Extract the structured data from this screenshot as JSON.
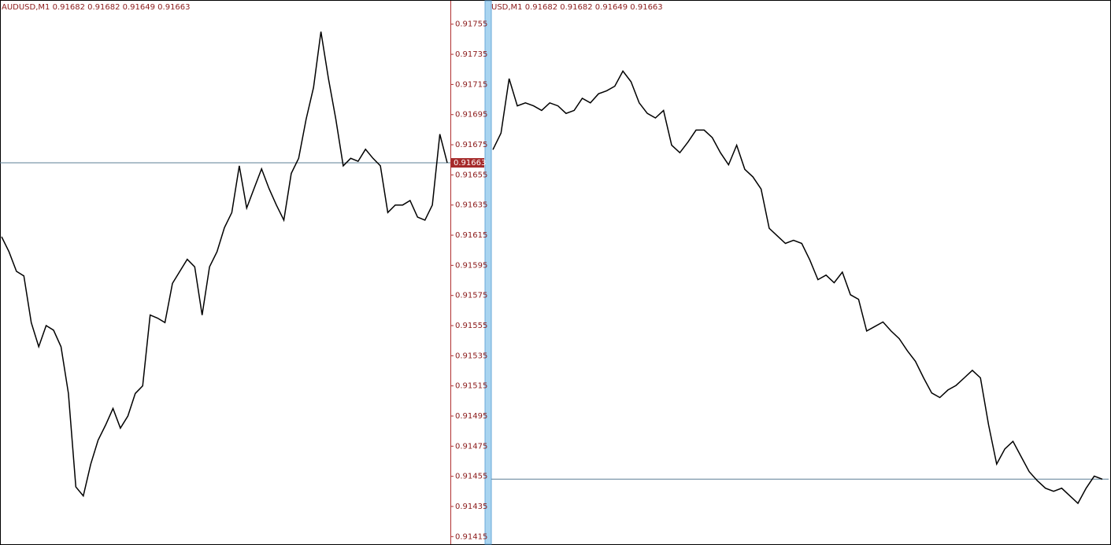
{
  "chart_data": [
    {
      "type": "line",
      "title": "AUDUSD,M1  0.91682 0.91682 0.91649 0.91663",
      "series": [
        {
          "color": "#000000",
          "values": [
            0.91614,
            0.91604,
            0.91591,
            0.91588,
            0.91557,
            0.91541,
            0.91555,
            0.91552,
            0.91541,
            0.9151,
            0.91448,
            0.91442,
            0.91463,
            0.91479,
            0.91489,
            0.915,
            0.91487,
            0.91495,
            0.9151,
            0.91515,
            0.91562,
            0.9156,
            0.91557,
            0.91583,
            0.91591,
            0.91599,
            0.91594,
            0.91562,
            0.91594,
            0.91604,
            0.9162,
            0.9163,
            0.91661,
            0.91633,
            0.91646,
            0.91659,
            0.91646,
            0.91635,
            0.91625,
            0.91656,
            0.91666,
            0.91692,
            0.91713,
            0.9175,
            0.91719,
            0.91692,
            0.91661,
            0.91666,
            0.91664,
            0.91672,
            0.91666,
            0.91661,
            0.9163,
            0.91635,
            0.91635,
            0.91638,
            0.91627,
            0.91625,
            0.91635,
            0.91682,
            0.91663
          ]
        }
      ],
      "ylim": [
        0.91411,
        0.9177
      ],
      "yticks": [
        0.91755,
        0.91735,
        0.91715,
        0.91695,
        0.91675,
        0.91655,
        0.91635,
        0.91615,
        0.91595,
        0.91575,
        0.91555,
        0.91535,
        0.91515,
        0.91495,
        0.91475,
        0.91455,
        0.91435,
        0.91415
      ],
      "last_price": 0.91663
    },
    {
      "type": "line",
      "title": "USD,M1  0.91682 0.91682 0.91649 0.91663",
      "series": [
        {
          "color": "#000000",
          "values": [
            0.91881,
            0.91892,
            0.91928,
            0.9191,
            0.91912,
            0.9191,
            0.91907,
            0.91912,
            0.9191,
            0.91905,
            0.91907,
            0.91915,
            0.91912,
            0.91918,
            0.9192,
            0.91923,
            0.91933,
            0.91926,
            0.91912,
            0.91905,
            0.91902,
            0.91907,
            0.91884,
            0.91879,
            0.91886,
            0.91894,
            0.91894,
            0.91889,
            0.91879,
            0.91871,
            0.91884,
            0.91868,
            0.91863,
            0.91855,
            0.91829,
            0.91824,
            0.91819,
            0.91821,
            0.91819,
            0.91808,
            0.91795,
            0.91798,
            0.91793,
            0.918,
            0.91785,
            0.91782,
            0.91761,
            0.91764,
            0.91767,
            0.91761,
            0.91756,
            0.91748,
            0.91741,
            0.9173,
            0.9172,
            0.91717,
            0.91722,
            0.91725,
            0.9173,
            0.91735,
            0.9173,
            0.91699,
            0.91673,
            0.91683,
            0.91688,
            0.91678,
            0.91668,
            0.91662,
            0.91657,
            0.91655,
            0.91657,
            0.91652,
            0.91647,
            0.91657,
            0.91665,
            0.91663
          ]
        }
      ],
      "ylim": [
        0.91621,
        0.91979
      ],
      "last_price": 0.91663
    }
  ]
}
